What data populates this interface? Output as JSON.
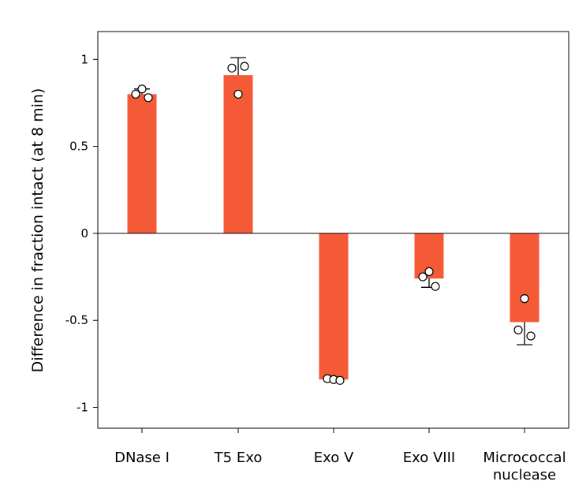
{
  "chart_data": {
    "type": "bar",
    "title": "",
    "xlabel": "",
    "ylabel": "Difference in fraction intact (at 8 min)",
    "ylim": [
      -1.12,
      1.16
    ],
    "yticks": [
      1,
      0.5,
      0,
      -0.5,
      -1
    ],
    "ytick_labels": [
      "1",
      "0.5",
      "0",
      "-0.5",
      "-1"
    ],
    "categories": [
      "DNase I",
      "T5 Exo",
      "Exo V",
      "Exo VIII",
      "Micrococcal nuclease"
    ],
    "category_lines": [
      [
        "DNase I"
      ],
      [
        "T5 Exo"
      ],
      [
        "Exo V"
      ],
      [
        "Exo VIII"
      ],
      [
        "Micrococcal",
        "nuclease"
      ]
    ],
    "values": [
      0.8,
      0.91,
      -0.84,
      -0.26,
      -0.51
    ],
    "errors": [
      0.03,
      0.1,
      0.005,
      0.05,
      0.13
    ],
    "points": [
      [
        0.8,
        0.83,
        0.78
      ],
      [
        0.95,
        0.96,
        0.8
      ],
      [
        -0.835,
        -0.84,
        -0.845
      ],
      [
        -0.25,
        -0.22,
        -0.305
      ],
      [
        -0.375,
        -0.555,
        -0.59
      ]
    ],
    "point_offsets": [
      [
        -1,
        0,
        1
      ],
      [
        -1,
        1,
        0
      ],
      [
        -1,
        0,
        1
      ],
      [
        -1,
        0,
        1
      ],
      [
        0,
        -1,
        1
      ]
    ],
    "grid": false,
    "bar_color": "#f55a37",
    "point_fill": "#ffffff",
    "point_stroke": "#000000"
  }
}
